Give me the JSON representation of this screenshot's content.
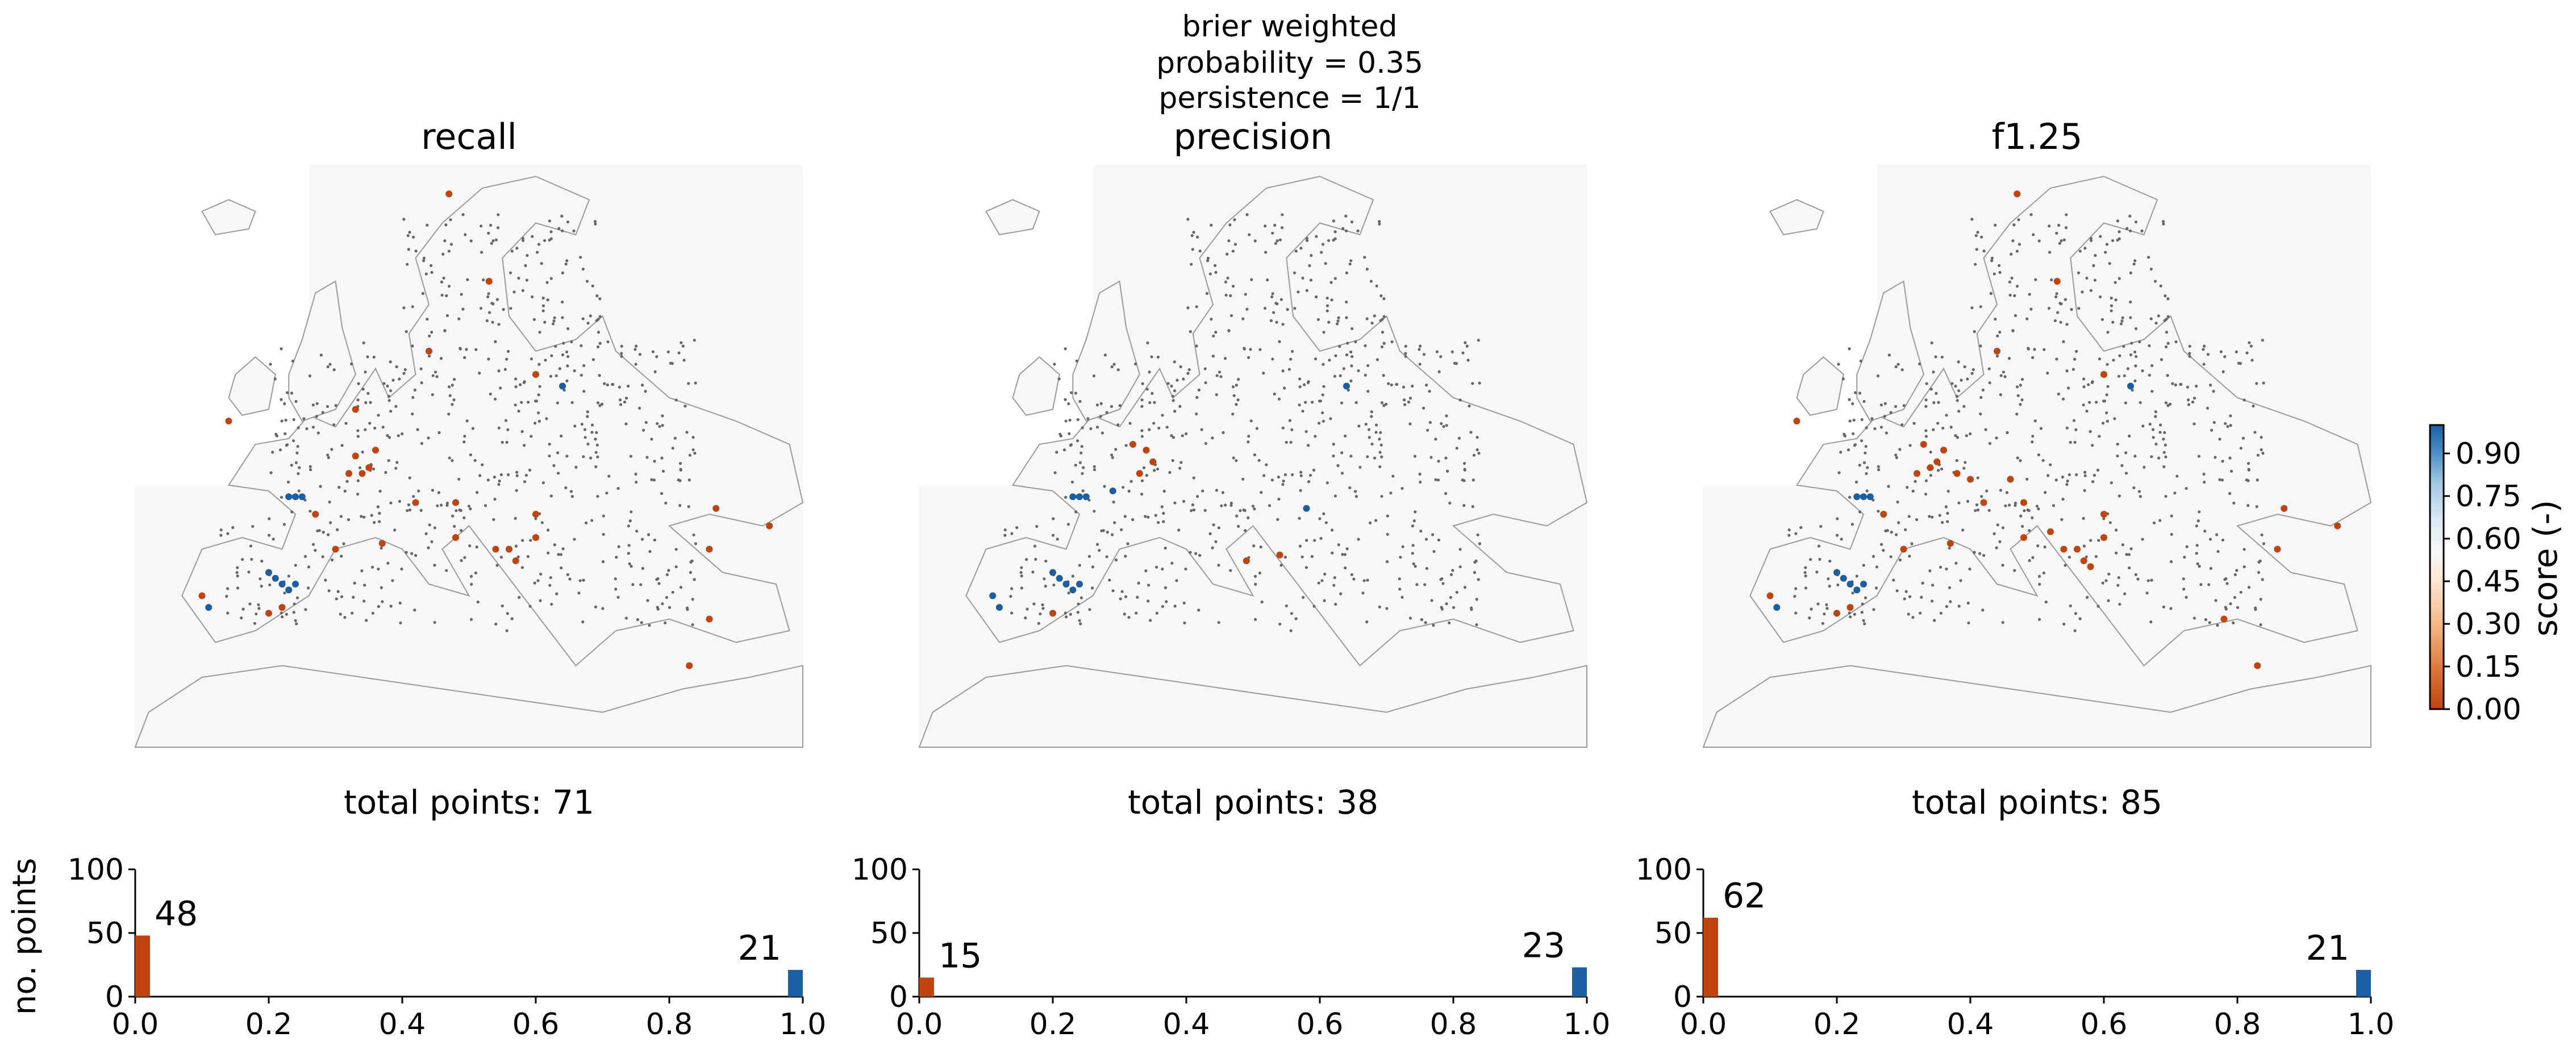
{
  "suptitle": {
    "line1": "brier weighted",
    "line2": "probability = 0.35",
    "line3": "persistence = 1/1"
  },
  "colorbar": {
    "label": "score (-)",
    "ticks": [
      "0.00",
      "0.15",
      "0.30",
      "0.45",
      "0.60",
      "0.75",
      "0.90"
    ],
    "tick_values": [
      0.0,
      0.15,
      0.3,
      0.45,
      0.6,
      0.75,
      0.9
    ],
    "range": [
      0,
      1
    ],
    "colors": [
      "#c1440e",
      "#e07b3c",
      "#f5b886",
      "#fde6d2",
      "#f7f7f7",
      "#d6e6f2",
      "#9ec8e2",
      "#4d8fc4",
      "#1a5fa4"
    ]
  },
  "panels": [
    {
      "title": "recall",
      "total_label": "total points: 71"
    },
    {
      "title": "precision",
      "total_label": "total points: 38"
    },
    {
      "title": "f1.25",
      "total_label": "total points: 85"
    }
  ],
  "histogram_axes": {
    "ylabel": "no. points",
    "yticks": [
      "0",
      "50",
      "100"
    ],
    "xticks": [
      "0.0",
      "0.2",
      "0.4",
      "0.6",
      "0.8",
      "1.0"
    ]
  },
  "chart_data": [
    {
      "type": "bar",
      "title": "recall",
      "annotation": "total points: 71",
      "xlim": [
        0,
        1
      ],
      "ylim": [
        0,
        100
      ],
      "ylabel": "no. points",
      "bars": [
        {
          "x": 0.0,
          "value": 48,
          "label": "48",
          "color": "#c1440e"
        },
        {
          "x": 1.0,
          "value": 21,
          "label": "21",
          "color": "#1a5fa4"
        }
      ]
    },
    {
      "type": "bar",
      "title": "precision",
      "annotation": "total points: 38",
      "xlim": [
        0,
        1
      ],
      "ylim": [
        0,
        100
      ],
      "bars": [
        {
          "x": 0.0,
          "value": 15,
          "label": "15",
          "color": "#c1440e"
        },
        {
          "x": 1.0,
          "value": 23,
          "label": "23",
          "color": "#1a5fa4"
        }
      ]
    },
    {
      "type": "bar",
      "title": "f1.25",
      "annotation": "total points: 85",
      "xlim": [
        0,
        1
      ],
      "ylim": [
        0,
        100
      ],
      "bars": [
        {
          "x": 0.0,
          "value": 62,
          "label": "62",
          "color": "#c1440e"
        },
        {
          "x": 1.0,
          "value": 21,
          "label": "21",
          "color": "#1a5fa4"
        }
      ]
    }
  ]
}
